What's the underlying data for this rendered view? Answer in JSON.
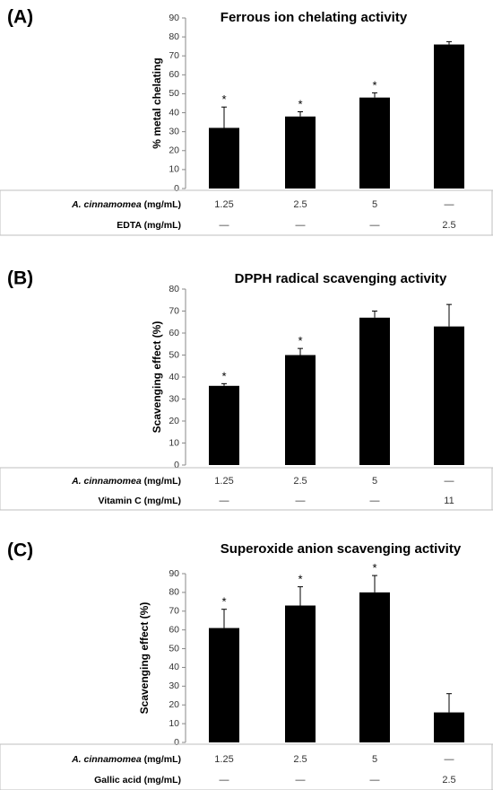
{
  "chart_data": [
    {
      "type": "bar",
      "panel": "(A)",
      "title": "Ferrous ion chelating activity",
      "ylabel": "% metal chelating",
      "ylim": [
        0,
        90
      ],
      "yticks": [
        0,
        10,
        20,
        30,
        40,
        50,
        60,
        70,
        80,
        90
      ],
      "values": [
        32,
        38,
        48,
        76
      ],
      "errors": [
        11,
        2.5,
        2.5,
        1.5
      ],
      "significance": [
        "*",
        "*",
        "*",
        ""
      ],
      "table": [
        {
          "label_italic": "A. cinnamomea",
          "label_rest": " (mg/mL)",
          "values": [
            "1.25",
            "2.5",
            "5",
            "—"
          ]
        },
        {
          "label_italic": "",
          "label_rest": "EDTA (mg/mL)",
          "values": [
            "—",
            "—",
            "—",
            "2.5"
          ]
        }
      ]
    },
    {
      "type": "bar",
      "panel": "(B)",
      "title": "DPPH radical scavenging activity",
      "ylabel": "Scavenging effect (%)",
      "ylim": [
        0,
        80
      ],
      "yticks": [
        0,
        10,
        20,
        30,
        40,
        50,
        60,
        70,
        80
      ],
      "values": [
        36,
        50,
        67,
        63
      ],
      "errors": [
        1,
        3,
        3,
        10
      ],
      "significance": [
        "*",
        "*",
        "",
        ""
      ],
      "table": [
        {
          "label_italic": "A. cinnamomea",
          "label_rest": " (mg/mL)",
          "values": [
            "1.25",
            "2.5",
            "5",
            "—"
          ]
        },
        {
          "label_italic": "",
          "label_rest": "Vitamin C (mg/mL)",
          "values": [
            "—",
            "—",
            "—",
            "11"
          ]
        }
      ]
    },
    {
      "type": "bar",
      "panel": "(C)",
      "title": "Superoxide anion scavenging activity",
      "ylabel": "Scavenging effect (%)",
      "ylim": [
        0,
        90
      ],
      "yticks": [
        0,
        10,
        20,
        30,
        40,
        50,
        60,
        70,
        80,
        90
      ],
      "values": [
        61,
        73,
        80,
        16
      ],
      "errors": [
        10,
        10,
        9,
        10
      ],
      "significance": [
        "*",
        "*",
        "*",
        ""
      ],
      "table": [
        {
          "label_italic": "A. cinnamomea",
          "label_rest": " (mg/mL)",
          "values": [
            "1.25",
            "2.5",
            "5",
            "—"
          ]
        },
        {
          "label_italic": "",
          "label_rest": "Gallic acid (mg/mL)",
          "values": [
            "—",
            "—",
            "—",
            "2.5"
          ]
        }
      ]
    }
  ],
  "colors": {
    "bar": "#000000",
    "axis": "#888888",
    "table_line": "#bfbfbf"
  }
}
